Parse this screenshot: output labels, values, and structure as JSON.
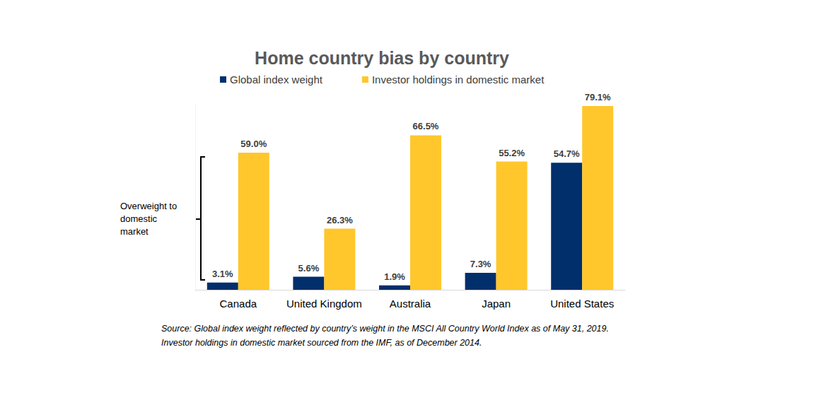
{
  "chart_data": {
    "type": "bar",
    "title": "Home country bias by country",
    "categories": [
      "Canada",
      "United Kingdom",
      "Australia",
      "Japan",
      "United States"
    ],
    "series": [
      {
        "name": "Global index weight",
        "color": "#002f6c",
        "values": [
          3.1,
          5.6,
          1.9,
          7.3,
          54.7
        ],
        "value_labels": [
          "3.1%",
          "5.6%",
          "1.9%",
          "7.3%",
          "54.7%"
        ]
      },
      {
        "name": "Investor holdings in domestic market",
        "color": "#ffc72c",
        "values": [
          59.0,
          26.3,
          66.5,
          55.2,
          79.1
        ],
        "value_labels": [
          "59.0%",
          "26.3%",
          "66.5%",
          "55.2%",
          "79.1%"
        ]
      }
    ],
    "ylim": [
      0,
      80
    ],
    "yticks": [
      0,
      80
    ],
    "grid": false,
    "legend": "top",
    "data_labels": true,
    "tick_labels": "x",
    "annotations": [
      "Overweight to\ndomestic\nmarket"
    ],
    "notes": [
      "Source: Global index weight reflected by country’s weight in the MSCI All Country World Index as of May 31, 2019.",
      "Investor holdings in domestic market sourced from the IMF, as of December 2014."
    ]
  }
}
